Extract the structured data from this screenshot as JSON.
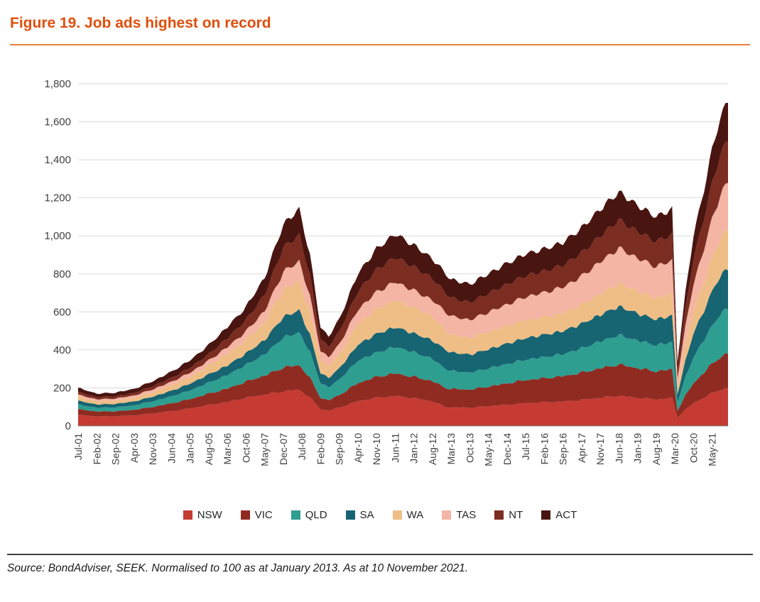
{
  "header": {
    "title": "Figure 19. Job ads highest on record"
  },
  "footer": {
    "source": "Source: BondAdviser, SEEK. Normalised to 100 as at January 2013. As at 10 November 2021."
  },
  "theme": {
    "title_color": "#E04E0B",
    "title_rule_color": "#E8823C",
    "grid_color": "#DBDBDB",
    "axis_color": "#7F7F7F",
    "tick_label_color": "#404040",
    "source_rule_color": "#3F3F3F",
    "text_color": "#1A1A1A"
  },
  "chart_data": {
    "type": "area",
    "stacked": true,
    "title": "Figure 19. Job ads highest on record",
    "xlabel": "",
    "ylabel": "",
    "grid": true,
    "legend_position": "bottom",
    "normalisation_note": "Normalised to 100 as at January 2013",
    "ylim": [
      0,
      1800
    ],
    "ytick_step": 200,
    "ytick_labels": [
      "0",
      "200",
      "400",
      "600",
      "800",
      "1,000",
      "1,200",
      "1,400",
      "1,600",
      "1,800"
    ],
    "x_unit": "months since Jul-2001",
    "x_month_max": 244,
    "xtick_month_indices": [
      0,
      7,
      14,
      21,
      28,
      35,
      42,
      49,
      56,
      63,
      70,
      77,
      84,
      91,
      98,
      105,
      112,
      119,
      126,
      133,
      140,
      147,
      154,
      161,
      168,
      175,
      182,
      189,
      196,
      203,
      210,
      217,
      224,
      231,
      238
    ],
    "xtick_labels": [
      "Jul-01",
      "Feb-02",
      "Sep-02",
      "Apr-03",
      "Nov-03",
      "Jun-04",
      "Jan-05",
      "Aug-05",
      "Mar-06",
      "Oct-06",
      "May-07",
      "Dec-07",
      "Jul-08",
      "Feb-09",
      "Sep-09",
      "Apr-10",
      "Nov-10",
      "Jun-11",
      "Jan-12",
      "Aug-12",
      "Mar-13",
      "Oct-13",
      "May-14",
      "Dec-14",
      "Jul-15",
      "Feb-16",
      "Sep-16",
      "Apr-17",
      "Nov-17",
      "Jun-18",
      "Jan-19",
      "Aug-19",
      "Mar-20",
      "Oct-20",
      "May-21"
    ],
    "sample_month_indices": [
      0,
      7,
      14,
      21,
      28,
      35,
      42,
      49,
      56,
      63,
      70,
      77,
      83,
      87,
      91,
      94,
      98,
      105,
      112,
      119,
      126,
      133,
      138,
      140,
      147,
      154,
      161,
      168,
      175,
      182,
      189,
      196,
      203,
      210,
      217,
      223,
      225,
      228,
      231,
      234,
      238,
      241,
      244
    ],
    "sample_point_labels": [
      "Jul-01",
      "Feb-02",
      "Sep-02",
      "Apr-03",
      "Nov-03",
      "Jun-04",
      "Jan-05",
      "Aug-05",
      "Mar-06",
      "Oct-06",
      "May-07",
      "Dec-07",
      "Jun-08",
      "Oct-08",
      "Feb-09",
      "May-09",
      "Sep-09",
      "Apr-10",
      "Nov-10",
      "Jun-11",
      "Jan-12",
      "Aug-12",
      "Jan-13",
      "Mar-13",
      "Oct-13",
      "May-14",
      "Dec-14",
      "Jul-15",
      "Feb-16",
      "Sep-16",
      "Apr-17",
      "Nov-17",
      "Jun-18",
      "Jan-19",
      "Aug-19",
      "Feb-20",
      "Apr-20",
      "Jul-20",
      "Oct-20",
      "Jan-21",
      "May-21",
      "Aug-21",
      "Nov-21"
    ],
    "series": [
      {
        "name": "NSW",
        "color": "#C53B33",
        "values": [
          58,
          50,
          51,
          56,
          66,
          78,
          92,
          110,
          126,
          148,
          165,
          182,
          190,
          150,
          88,
          80,
          96,
          130,
          148,
          158,
          146,
          130,
          100,
          98,
          96,
          104,
          112,
          120,
          124,
          128,
          137,
          148,
          158,
          148,
          140,
          146,
          42,
          85,
          120,
          142,
          172,
          190,
          200
        ]
      },
      {
        "name": "VIC",
        "color": "#902B22",
        "values": [
          30,
          26,
          26,
          29,
          34,
          41,
          49,
          60,
          70,
          85,
          100,
          125,
          130,
          103,
          60,
          55,
          66,
          95,
          110,
          118,
          112,
          106,
          100,
          97,
          95,
          103,
          112,
          121,
          127,
          133,
          143,
          155,
          165,
          156,
          147,
          152,
          38,
          75,
          105,
          125,
          155,
          172,
          180
        ]
      },
      {
        "name": "QLD",
        "color": "#2E9E90",
        "values": [
          24,
          20,
          21,
          24,
          30,
          37,
          46,
          58,
          72,
          88,
          112,
          158,
          172,
          136,
          78,
          68,
          82,
          118,
          128,
          140,
          130,
          118,
          100,
          95,
          90,
          96,
          102,
          108,
          112,
          117,
          128,
          142,
          155,
          146,
          138,
          143,
          45,
          95,
          138,
          163,
          200,
          225,
          238
        ]
      },
      {
        "name": "SA",
        "color": "#176472",
        "values": [
          20,
          17,
          18,
          20,
          24,
          29,
          35,
          43,
          50,
          60,
          75,
          108,
          116,
          92,
          53,
          50,
          58,
          84,
          98,
          104,
          99,
          96,
          100,
          97,
          94,
          100,
          107,
          113,
          117,
          121,
          129,
          140,
          150,
          142,
          135,
          140,
          42,
          88,
          125,
          147,
          180,
          200,
          212
        ]
      },
      {
        "name": "WA",
        "color": "#EFBE86",
        "values": [
          20,
          17,
          17,
          19,
          23,
          29,
          36,
          46,
          60,
          71,
          93,
          142,
          154,
          121,
          70,
          62,
          75,
          108,
          130,
          142,
          136,
          126,
          100,
          94,
          88,
          92,
          94,
          95,
          93,
          94,
          100,
          110,
          122,
          116,
          112,
          117,
          40,
          85,
          122,
          144,
          178,
          198,
          210
        ]
      },
      {
        "name": "TAS",
        "color": "#F4B5A4",
        "values": [
          12,
          10,
          11,
          12,
          15,
          18,
          22,
          27,
          36,
          45,
          60,
          95,
          104,
          82,
          47,
          46,
          52,
          76,
          90,
          96,
          90,
          86,
          100,
          96,
          95,
          103,
          112,
          122,
          129,
          137,
          150,
          168,
          185,
          175,
          166,
          172,
          46,
          95,
          138,
          163,
          202,
          228,
          242
        ]
      },
      {
        "name": "NT",
        "color": "#7C2D21",
        "values": [
          14,
          12,
          12,
          14,
          17,
          21,
          26,
          33,
          48,
          60,
          85,
          128,
          138,
          109,
          62,
          55,
          65,
          96,
          118,
          130,
          124,
          114,
          100,
          97,
          92,
          99,
          106,
          112,
          112,
          115,
          123,
          136,
          148,
          140,
          132,
          136,
          45,
          92,
          130,
          153,
          188,
          210,
          222
        ]
      },
      {
        "name": "ACT",
        "color": "#491511",
        "values": [
          22,
          18,
          19,
          21,
          26,
          32,
          39,
          48,
          58,
          68,
          90,
          122,
          136,
          107,
          62,
          54,
          66,
          93,
          108,
          122,
          113,
          104,
          100,
          96,
          95,
          103,
          110,
          114,
          116,
          120,
          130,
          141,
          147,
          137,
          130,
          134,
          42,
          85,
          122,
          143,
          175,
          197,
          206
        ]
      }
    ]
  }
}
